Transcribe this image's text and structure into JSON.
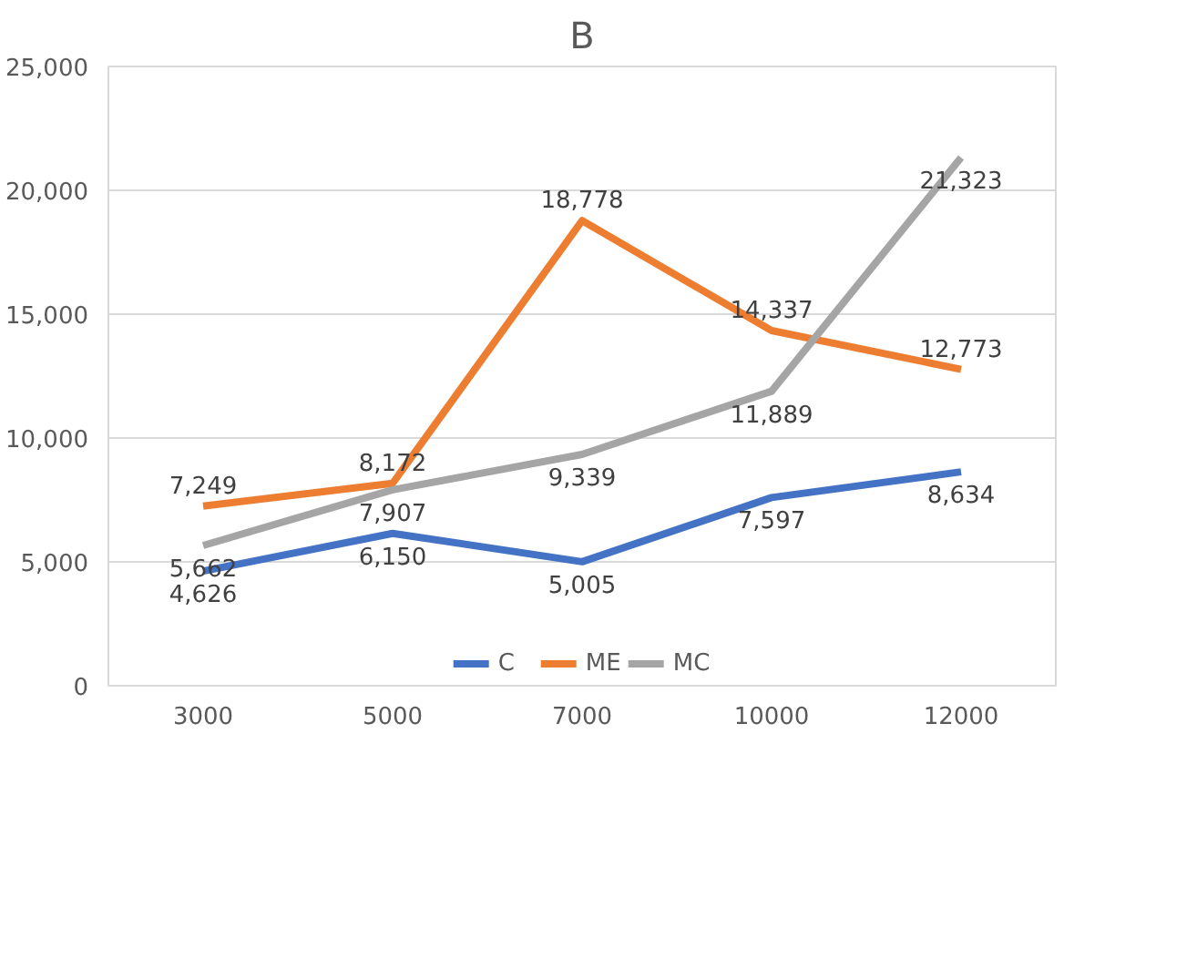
{
  "chart_data": {
    "type": "line",
    "title": "B",
    "categories": [
      "3000",
      "5000",
      "7000",
      "10000",
      "12000"
    ],
    "series": [
      {
        "name": "C",
        "color": "#4472c4",
        "values": [
          4626,
          6150,
          5005,
          7597,
          8634
        ],
        "value_labels": [
          "4,626",
          "6,150",
          "5,005",
          "7,597",
          "8,634"
        ]
      },
      {
        "name": "ME",
        "color": "#ed7d31",
        "values": [
          7249,
          8172,
          18778,
          14337,
          12773
        ],
        "value_labels": [
          "7,249",
          "8,172",
          "18,778",
          "14,337",
          "12,773"
        ]
      },
      {
        "name": "MC",
        "color": "#a5a5a5",
        "values": [
          5662,
          7907,
          9339,
          11889,
          21323
        ],
        "value_labels": [
          "5,662",
          "7,907",
          "9,339",
          "11,889",
          "21,323"
        ]
      }
    ],
    "ylim": [
      0,
      25000
    ],
    "yticks": [
      {
        "value": 0,
        "label": "0"
      },
      {
        "value": 5000,
        "label": "5,000"
      },
      {
        "value": 10000,
        "label": "10,000"
      },
      {
        "value": 15000,
        "label": "15,000"
      },
      {
        "value": 20000,
        "label": "20,000"
      },
      {
        "value": 25000,
        "label": "25,000"
      }
    ],
    "grid": "y",
    "legend": "bottom",
    "marker": "none",
    "line_style": "solid"
  }
}
